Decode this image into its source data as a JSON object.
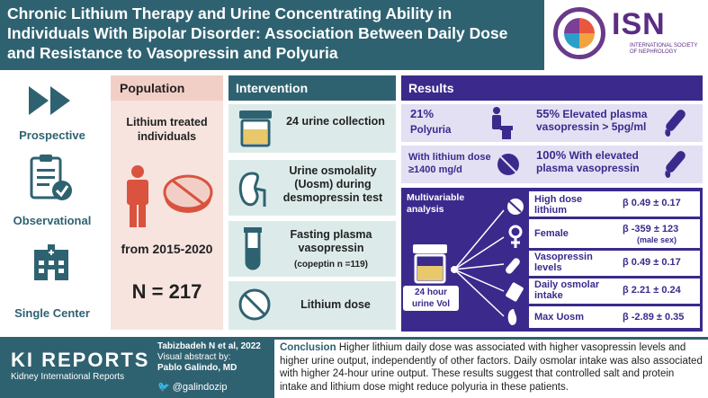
{
  "header": {
    "title": "Chronic Lithium Therapy and Urine Concentrating Ability in Individuals With Bipolar Disorder: Association Between Daily Dose and Resistance to Vasopressin and Polyuria",
    "logo_text": "ISN",
    "logo_subtext": "INTERNATIONAL SOCIETY OF NEPHROLOGY"
  },
  "study_design": [
    {
      "label": "Prospective",
      "icon": "fast-forward-icon"
    },
    {
      "label": "Observational",
      "icon": "clipboard-check-icon"
    },
    {
      "label": "Single Center",
      "icon": "hospital-icon"
    }
  ],
  "population": {
    "heading": "Population",
    "description": "Lithium treated individuals",
    "dates": "from 2015-2020",
    "n": "N = 217"
  },
  "intervention": {
    "heading": "Intervention",
    "items": [
      {
        "text": "24 urine collection",
        "icon": "urine-cup-icon"
      },
      {
        "text": "Urine osmolality (Uosm) during desmopressin test",
        "icon": "kidney-icon"
      },
      {
        "text": "Fasting plasma vasopressin",
        "subtext": "(copeptin n =119)",
        "icon": "test-tube-icon"
      },
      {
        "text": "Lithium dose",
        "icon": "pill-icon"
      }
    ]
  },
  "results": {
    "heading": "Results",
    "polyuria_pct": "21%",
    "polyuria_label": "Polyuria",
    "elevated_pct": "55%",
    "elevated_label": "Elevated plasma vasopressin  > 5pg/ml",
    "high_dose_label": "With lithium dose  ≥1400 mg/d",
    "high_dose_pct": "100%",
    "high_dose_result": "With elevated plasma vasopressin",
    "multivariable_label": "Multivariable analysis",
    "outcome_label": "24 hour urine Vol",
    "predictors": [
      {
        "name": "High dose lithium",
        "value": "β 0.49 ± 0.17",
        "note": ""
      },
      {
        "name": "Female",
        "value": "β -359 ± 123",
        "note": "(male sex)"
      },
      {
        "name": "Vasopressin levels",
        "value": "β 0.49 ± 0.17",
        "note": ""
      },
      {
        "name": "Daily osmolar intake",
        "value": "β 2.21 ± 0.24",
        "note": ""
      },
      {
        "name": "Max Uosm",
        "value": "β -2.89 ± 0.35",
        "note": ""
      }
    ]
  },
  "footer": {
    "journal": "KI REPORTS",
    "journal_sub": "Kidney International Reports",
    "citation": "Tabizbadeh N et al, 2022",
    "abstract_by": "Visual abstract by:",
    "author": "Pablo Galindo, MD",
    "twitter": "@galindozip",
    "conclusion_label": "Conclusion",
    "conclusion_text": "Higher lithium daily dose was associated with higher vasopressin levels and higher urine output, independently of other factors. Daily osmolar intake was also associated with higher 24-hour urine output. These results suggest that controlled salt and protein intake and lithium dose might reduce polyuria in these patients."
  },
  "colors": {
    "teal": "#2f6271",
    "purple": "#3b2a8c",
    "pink": "#f7e4df",
    "accent_red": "#d9533e"
  }
}
